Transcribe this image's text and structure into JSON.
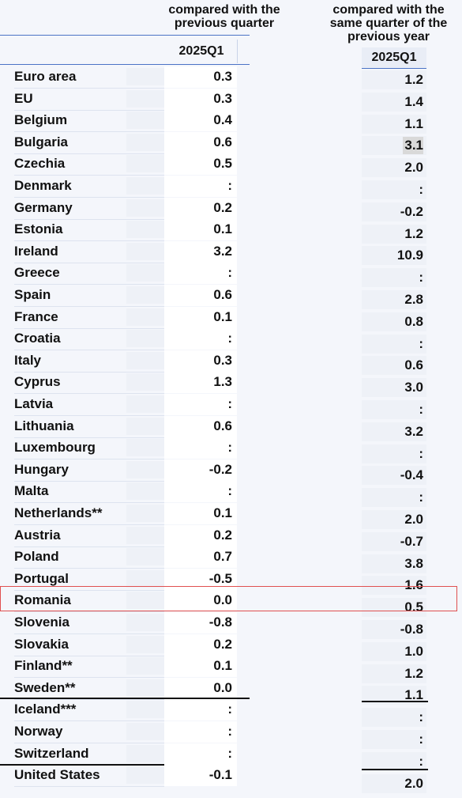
{
  "headers": {
    "qoq": "compared with the previous quarter",
    "yoy": "compared with the same quarter of the previous year",
    "period_qoq": "2025Q1",
    "period_yoy": "2025Q1"
  },
  "rows": [
    {
      "name": "Euro area",
      "qoq": "0.3",
      "yoy": "1.2"
    },
    {
      "name": "EU",
      "qoq": "0.3",
      "yoy": "1.4"
    },
    {
      "name": "Belgium",
      "qoq": "0.4",
      "yoy": "1.1"
    },
    {
      "name": "Bulgaria",
      "qoq": "0.6",
      "yoy": "3.1"
    },
    {
      "name": "Czechia",
      "qoq": "0.5",
      "yoy": "2.0"
    },
    {
      "name": "Denmark",
      "qoq": ":",
      "yoy": ":"
    },
    {
      "name": "Germany",
      "qoq": "0.2",
      "yoy": "-0.2"
    },
    {
      "name": "Estonia",
      "qoq": "0.1",
      "yoy": "1.2"
    },
    {
      "name": "Ireland",
      "qoq": "3.2",
      "yoy": "10.9"
    },
    {
      "name": "Greece",
      "qoq": ":",
      "yoy": ":"
    },
    {
      "name": "Spain",
      "qoq": "0.6",
      "yoy": "2.8"
    },
    {
      "name": "France",
      "qoq": "0.1",
      "yoy": "0.8"
    },
    {
      "name": "Croatia",
      "qoq": ":",
      "yoy": ":"
    },
    {
      "name": "Italy",
      "qoq": "0.3",
      "yoy": "0.6"
    },
    {
      "name": "Cyprus",
      "qoq": "1.3",
      "yoy": "3.0"
    },
    {
      "name": "Latvia",
      "qoq": ":",
      "yoy": ":"
    },
    {
      "name": "Lithuania",
      "qoq": "0.6",
      "yoy": "3.2"
    },
    {
      "name": "Luxembourg",
      "qoq": ":",
      "yoy": ":"
    },
    {
      "name": "Hungary",
      "qoq": "-0.2",
      "yoy": "-0.4"
    },
    {
      "name": "Malta",
      "qoq": ":",
      "yoy": ":"
    },
    {
      "name": "Netherlands**",
      "qoq": "0.1",
      "yoy": "2.0"
    },
    {
      "name": "Austria",
      "qoq": "0.2",
      "yoy": "-0.7"
    },
    {
      "name": "Poland",
      "qoq": "0.7",
      "yoy": "3.8"
    },
    {
      "name": "Portugal",
      "qoq": "-0.5",
      "yoy": "1.6"
    },
    {
      "name": "Romania",
      "qoq": "0.0",
      "yoy": "0.5"
    },
    {
      "name": "Slovenia",
      "qoq": "-0.8",
      "yoy": "-0.8"
    },
    {
      "name": "Slovakia",
      "qoq": "0.2",
      "yoy": "1.0"
    },
    {
      "name": "Finland**",
      "qoq": "0.1",
      "yoy": "1.2"
    },
    {
      "name": "Sweden**",
      "qoq": "0.0",
      "yoy": "1.1"
    },
    {
      "name": "Iceland***",
      "qoq": ":",
      "yoy": ":"
    },
    {
      "name": "Norway",
      "qoq": ":",
      "yoy": ":"
    },
    {
      "name": "Switzerland",
      "qoq": ":",
      "yoy": ":"
    },
    {
      "name": "United States",
      "qoq": "-0.1",
      "yoy": "2.0"
    }
  ],
  "highlight": {
    "row": "Romania",
    "color": "#e05050"
  },
  "shaded_cell": {
    "row": "Bulgaria",
    "column": "yoy",
    "color": "#d9d9d9"
  }
}
